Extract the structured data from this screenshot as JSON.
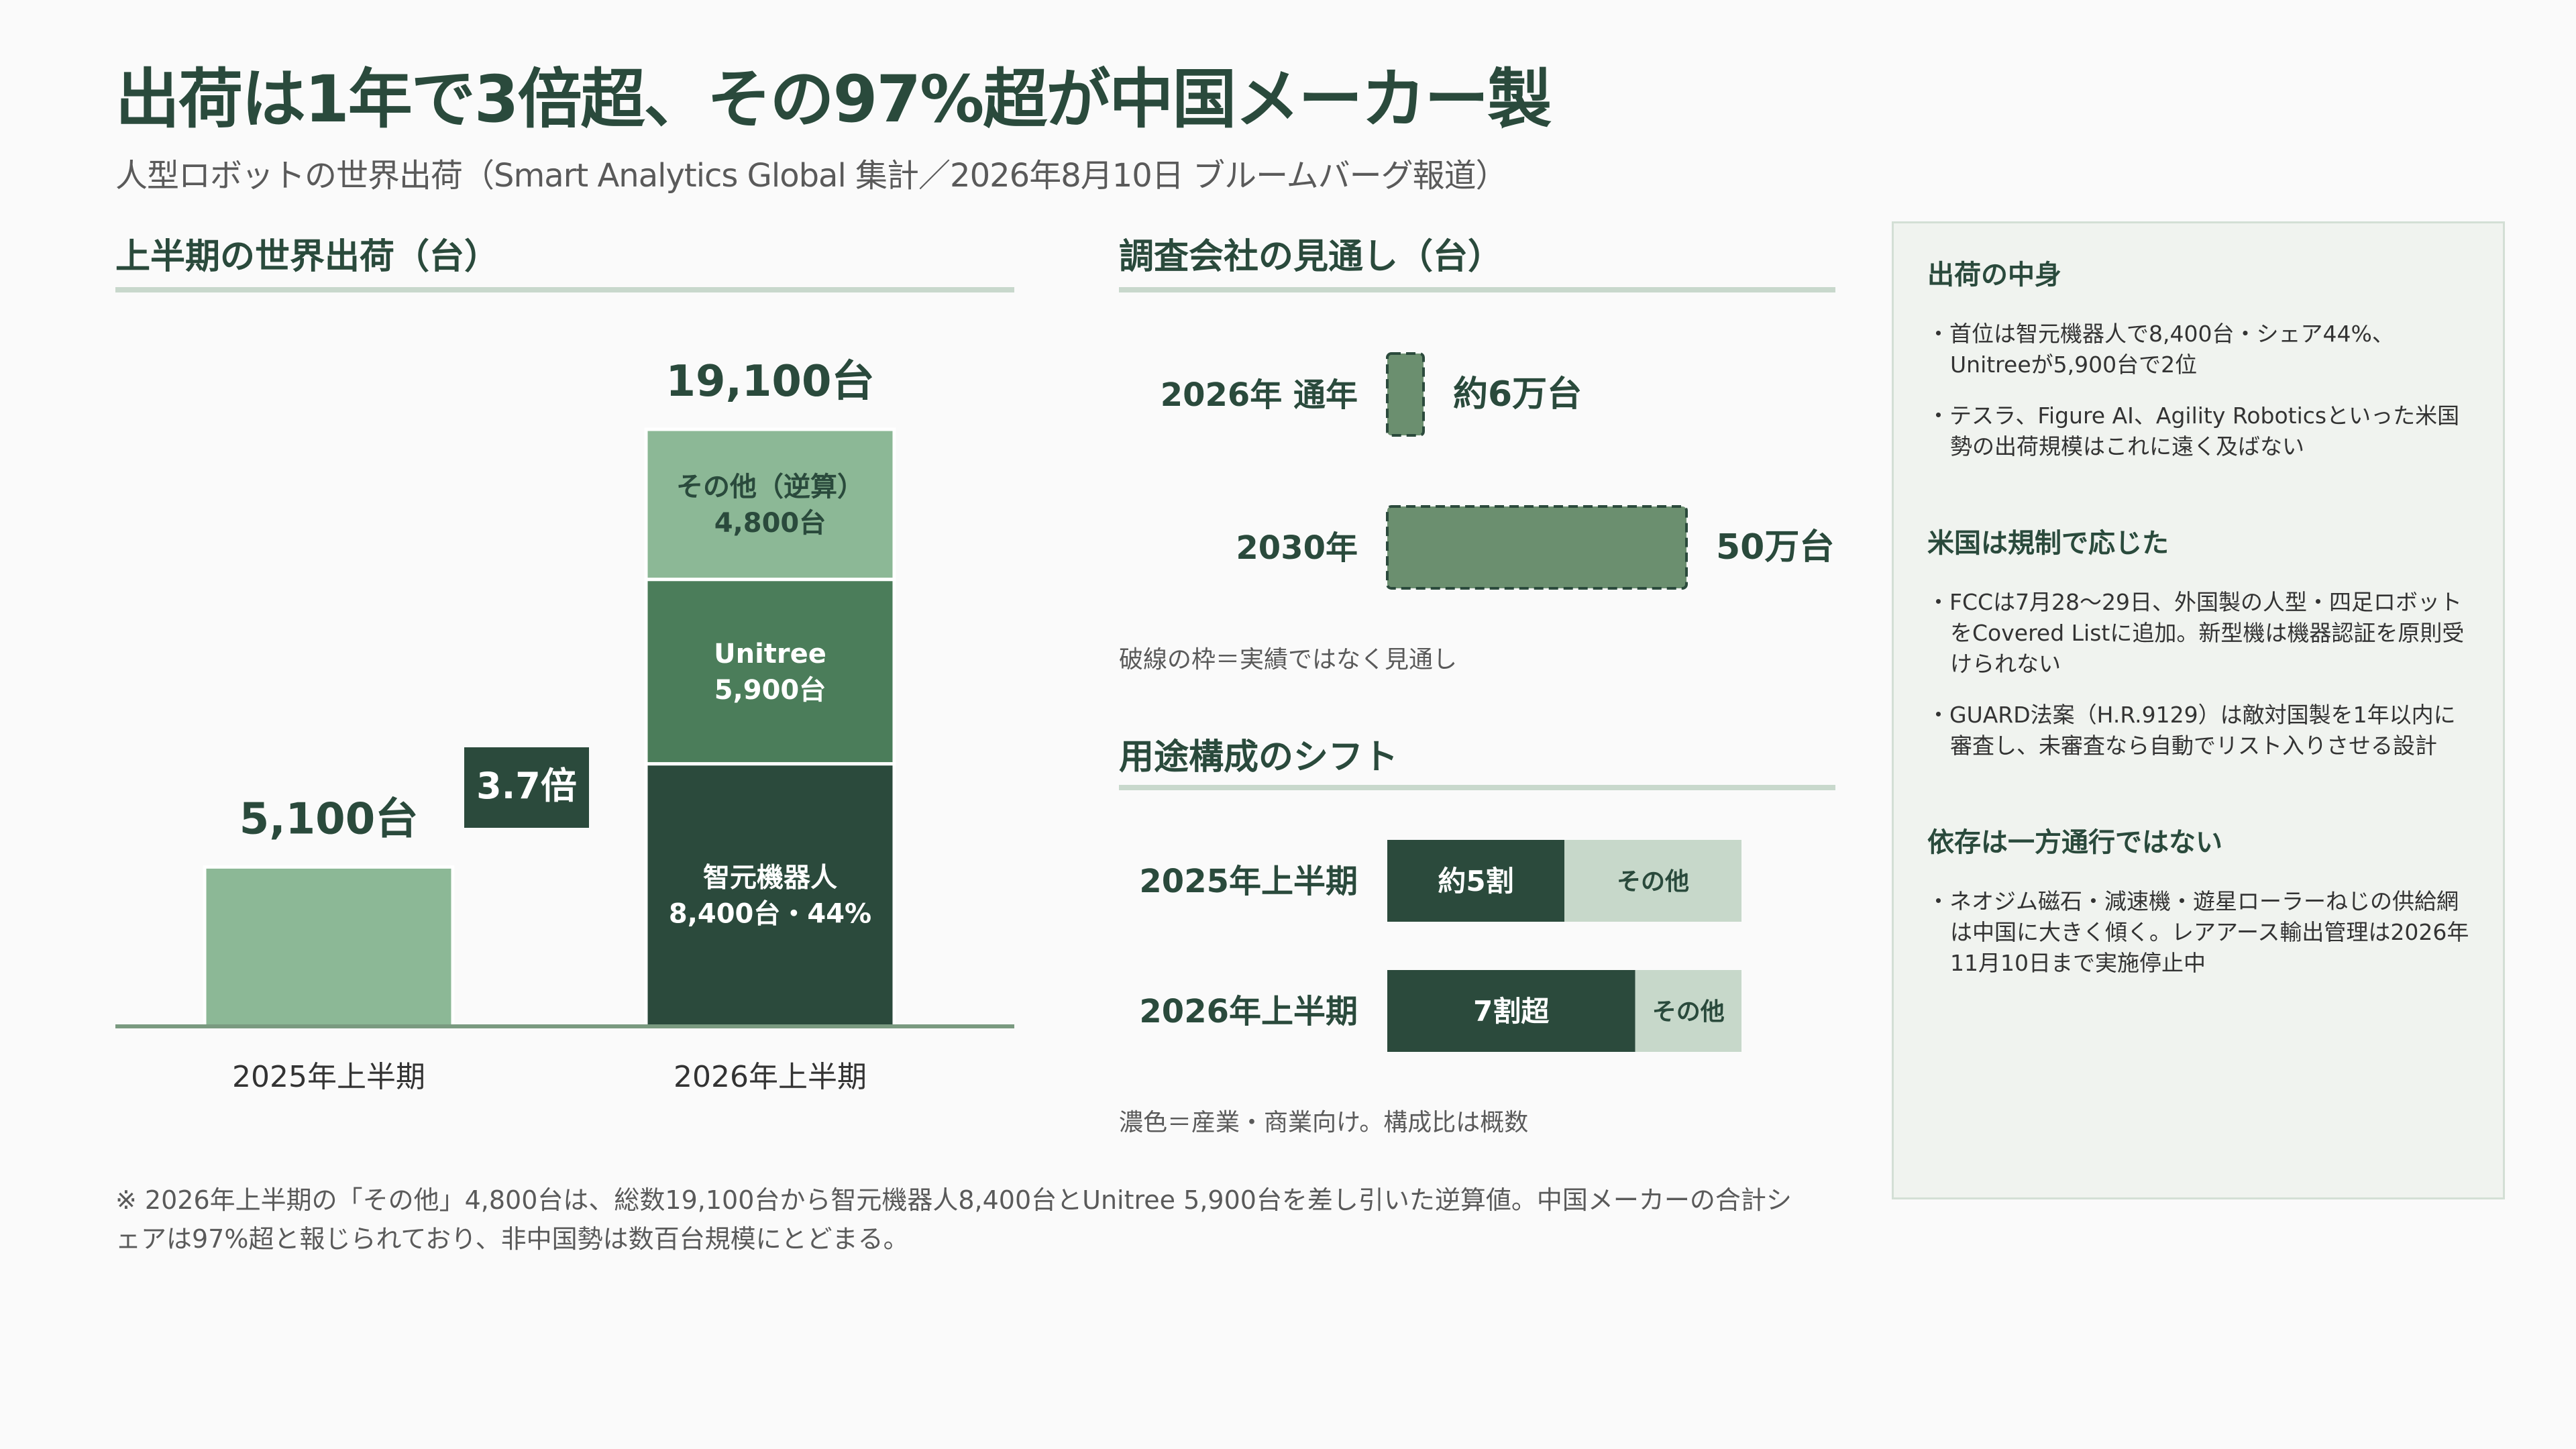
{
  "title": "出荷は1年で3倍超、その97%超が中国メーカー製",
  "subtitle": "人型ロボットの世界出荷（Smart Analytics Global 集計／2026年8月10日 ブルームバーグ報道）",
  "colors": {
    "dark": "#2b4a3c",
    "mid": "#4b7d5a",
    "light": "#8cb896",
    "projection": "#6b8f6f",
    "pale": "#c7d8ca",
    "text": "#2a4a3c"
  },
  "chart_data": [
    {
      "type": "bar",
      "title": "上半期の世界出荷（台）",
      "categories": [
        "2025年上半期",
        "2026年上半期"
      ],
      "series": [
        {
          "name": "",
          "values": [
            5100,
            0
          ],
          "label": ""
        },
        {
          "name": "智元機器人",
          "values": [
            0,
            8400
          ],
          "label": "智元機器人\n8,400台・44%"
        },
        {
          "name": "Unitree",
          "values": [
            0,
            5900
          ],
          "label": "Unitree\n5,900台"
        },
        {
          "name": "その他（逆算）",
          "values": [
            0,
            4800
          ],
          "label": "その他（逆算）\n4,800台"
        }
      ],
      "totals": [
        "5,100台",
        "19,100台"
      ],
      "growth_label": "3.7倍",
      "ylim": [
        0,
        19100
      ],
      "stacked": true
    },
    {
      "type": "bar",
      "orientation": "horizontal",
      "title": "調査会社の見通し（台）",
      "categories": [
        "2026年 通年",
        "2030年"
      ],
      "values": [
        60000,
        500000
      ],
      "value_labels": [
        "約6万台",
        "50万台"
      ],
      "note": "破線の枠＝実績ではなく見通し",
      "projection": true
    },
    {
      "type": "bar",
      "orientation": "horizontal",
      "stacked": true,
      "title": "用途構成のシフト",
      "categories": [
        "2025年上半期",
        "2026年上半期"
      ],
      "series": [
        {
          "name": "",
          "values": [
            0.5,
            0.7
          ],
          "labels": [
            "約5割",
            "7割超"
          ]
        },
        {
          "name": "",
          "values": [
            0.5,
            0.3
          ],
          "labels": [
            "その他",
            "その他"
          ]
        }
      ],
      "note": "濃色＝産業・商業向け。構成比は概数"
    }
  ],
  "footnote": "※ 2026年上半期の「その他」4,800台は、総数19,100台から智元機器人8,400台とUnitree 5,900台を差し引いた逆算値。中国メーカーの合計シェアは97%超と報じられており、非中国勢は数百台規模にとどまる。",
  "sidebar": [
    {
      "heading": "出荷の中身",
      "bullets": [
        "・首位は智元機器人で8,400台・シェア44%、Unitreeが5,900台で2位",
        "・テスラ、Figure AI、Agility Roboticsといった米国勢の出荷規模はこれに遠く及ばない"
      ]
    },
    {
      "heading": "米国は規制で応じた",
      "bullets": [
        "・FCCは7月28〜29日、外国製の人型・四足ロボットをCovered Listに追加。新型機は機器認証を原則受けられない",
        "・GUARD法案（H.R.9129）は敵対国製を1年以内に審査し、未審査なら自動でリスト入りさせる設計"
      ]
    },
    {
      "heading": "依存は一方通行ではない",
      "bullets": [
        "・ネオジム磁石・減速機・遊星ローラーねじの供給網は中国に大きく傾く。レアアース輸出管理は2026年11月10日まで実施停止中"
      ]
    }
  ]
}
